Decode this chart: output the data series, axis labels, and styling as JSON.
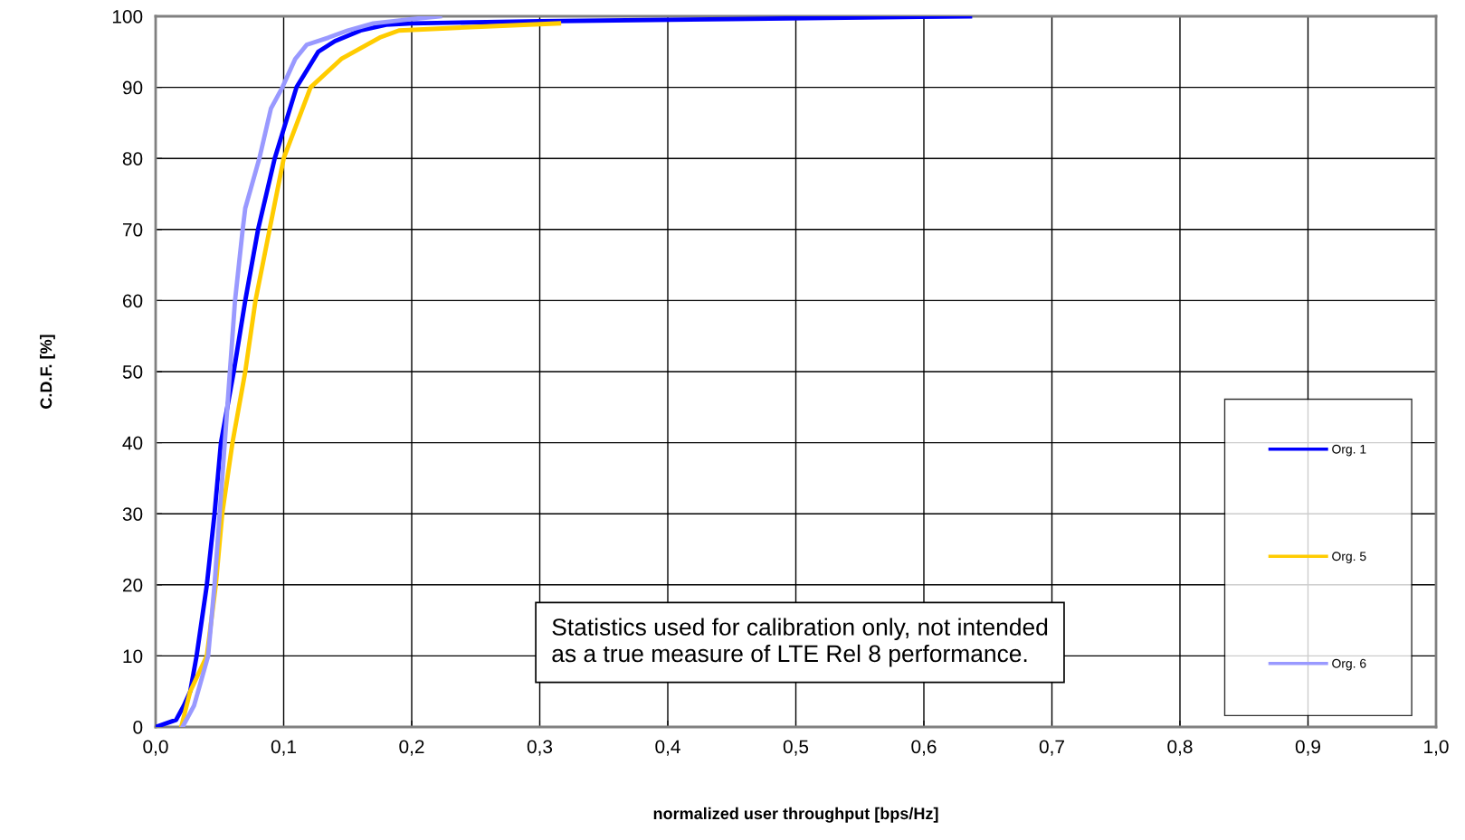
{
  "chart_data": {
    "type": "line",
    "xlabel": "normalized user throughput [bps/Hz]",
    "ylabel": "C.D.F. [%]",
    "xlim": [
      0,
      1
    ],
    "ylim": [
      0,
      100
    ],
    "xticks": [
      {
        "value": 0,
        "label": "0,0"
      },
      {
        "value": 0.1,
        "label": "0,1"
      },
      {
        "value": 0.2,
        "label": "0,2"
      },
      {
        "value": 0.3,
        "label": "0,3"
      },
      {
        "value": 0.4,
        "label": "0,4"
      },
      {
        "value": 0.5,
        "label": "0,5"
      },
      {
        "value": 0.6,
        "label": "0,6"
      },
      {
        "value": 0.7,
        "label": "0,7"
      },
      {
        "value": 0.8,
        "label": "0,8"
      },
      {
        "value": 0.9,
        "label": "0,9"
      },
      {
        "value": 1,
        "label": "1,0"
      }
    ],
    "yticks": [
      0,
      10,
      20,
      30,
      40,
      50,
      60,
      70,
      80,
      90,
      100
    ],
    "grid": true,
    "legend": "bottom right",
    "marker": "none",
    "line_style": "solid",
    "annotations": [
      "Statistics used for calibration only, not intended\nas a true measure of LTE Rel 8 performance."
    ],
    "series": [
      {
        "name": "Org. 1",
        "color": "#0000ff",
        "x": [
          0,
          0.016,
          0.022,
          0.027,
          0.032,
          0.036,
          0.04,
          0.046,
          0.051,
          0.056,
          0.061,
          0.07,
          0.08,
          0.093,
          0.11,
          0.127,
          0.14,
          0.16,
          0.18,
          0.2,
          0.3,
          0.45,
          0.636
        ],
        "values": [
          0,
          1,
          3,
          5,
          10,
          15,
          20,
          30,
          40,
          45,
          50,
          60,
          70,
          80,
          90,
          95,
          96.5,
          98,
          98.8,
          99,
          99.3,
          99.6,
          100
        ]
      },
      {
        "name": "Org. 5",
        "color": "#ffcc00",
        "x": [
          0.02,
          0.027,
          0.04,
          0.047,
          0.052,
          0.06,
          0.07,
          0.078,
          0.089,
          0.1,
          0.121,
          0.145,
          0.175,
          0.19,
          0.25,
          0.315
        ],
        "values": [
          0,
          5,
          10,
          20,
          30,
          40,
          50,
          60,
          70,
          80,
          90,
          94,
          97,
          98,
          98.5,
          99
        ]
      },
      {
        "name": "Org. 6",
        "color": "#9999ff",
        "x": [
          0.021,
          0.03,
          0.041,
          0.046,
          0.05,
          0.054,
          0.058,
          0.062,
          0.068,
          0.07,
          0.081,
          0.09,
          0.099,
          0.109,
          0.118,
          0.135,
          0.15,
          0.17,
          0.2,
          0.222
        ],
        "values": [
          0,
          3,
          10,
          20,
          30,
          40,
          50,
          60,
          70,
          73,
          80,
          87,
          90,
          94,
          96,
          97,
          98,
          99,
          99.6,
          100
        ]
      }
    ]
  }
}
